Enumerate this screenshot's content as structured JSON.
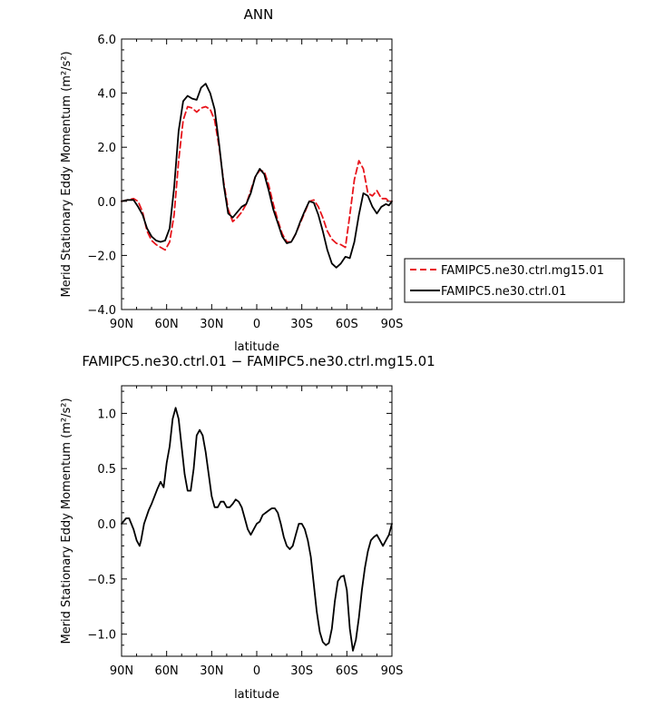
{
  "chart_data": [
    {
      "type": "line",
      "title": "ANN",
      "xlabel": "latitude",
      "ylabel": "Merid Stationary Eddy Momentum (m²/s²)",
      "xlim": [
        90,
        -90
      ],
      "ylim": [
        -4.0,
        6.0
      ],
      "x_ticks": [
        90,
        60,
        30,
        0,
        -30,
        -60,
        -90
      ],
      "x_tick_labels": [
        "90N",
        "60N",
        "30N",
        "0",
        "30S",
        "60S",
        "90S"
      ],
      "y_ticks": [
        -4,
        -2,
        0,
        2,
        4,
        6
      ],
      "y_tick_labels": [
        "−4.0",
        "−2.0",
        "0.0",
        "2.0",
        "4.0",
        "6.0"
      ],
      "legend_position": "outside-right",
      "series": [
        {
          "name": "FAMIPC5.ne30.ctrl.mg15.01",
          "color": "#e8141b",
          "dash": "dashed",
          "x": [
            90,
            86,
            82,
            79,
            76,
            73,
            70,
            67,
            64,
            61,
            58,
            55,
            52,
            49,
            46,
            43,
            40,
            37,
            34,
            31,
            28,
            25,
            22,
            19,
            16,
            13,
            10,
            7,
            4,
            1,
            -2,
            -5,
            -8,
            -11,
            -14,
            -17,
            -20,
            -23,
            -26,
            -29,
            -32,
            -35,
            -38,
            -41,
            -44,
            -47,
            -50,
            -53,
            -56,
            -59,
            -62,
            -65,
            -68,
            -71,
            -74,
            -77,
            -80,
            -83,
            -86,
            -88,
            -90
          ],
          "y": [
            0.0,
            0.05,
            0.1,
            0.0,
            -0.4,
            -1.1,
            -1.45,
            -1.6,
            -1.7,
            -1.8,
            -1.5,
            -0.5,
            1.5,
            3.0,
            3.5,
            3.45,
            3.3,
            3.45,
            3.5,
            3.4,
            3.0,
            2.0,
            0.7,
            -0.3,
            -0.75,
            -0.6,
            -0.4,
            -0.1,
            0.4,
            0.9,
            1.15,
            1.1,
            0.6,
            -0.1,
            -0.7,
            -1.2,
            -1.5,
            -1.5,
            -1.2,
            -0.8,
            -0.4,
            0.0,
            0.05,
            -0.2,
            -0.6,
            -1.1,
            -1.4,
            -1.55,
            -1.6,
            -1.7,
            -0.5,
            0.8,
            1.5,
            1.2,
            0.3,
            0.2,
            0.4,
            0.1,
            0.1,
            0.0,
            0.0
          ]
        },
        {
          "name": "FAMIPC5.ne30.ctrl.01",
          "color": "#000000",
          "dash": "solid",
          "x": [
            90,
            86,
            82,
            79,
            76,
            73,
            70,
            67,
            64,
            61,
            58,
            55,
            52,
            49,
            46,
            43,
            40,
            37,
            34,
            31,
            28,
            25,
            22,
            19,
            16,
            13,
            10,
            7,
            4,
            1,
            -2,
            -5,
            -8,
            -11,
            -14,
            -17,
            -20,
            -23,
            -26,
            -29,
            -32,
            -35,
            -38,
            -41,
            -44,
            -47,
            -50,
            -53,
            -56,
            -59,
            -62,
            -65,
            -68,
            -71,
            -74,
            -77,
            -80,
            -83,
            -86,
            -88,
            -90
          ],
          "y": [
            0.0,
            0.05,
            0.05,
            -0.2,
            -0.5,
            -1.0,
            -1.3,
            -1.45,
            -1.5,
            -1.45,
            -1.0,
            0.5,
            2.6,
            3.7,
            3.9,
            3.8,
            3.75,
            4.2,
            4.35,
            4.0,
            3.4,
            2.1,
            0.6,
            -0.45,
            -0.6,
            -0.4,
            -0.2,
            -0.1,
            0.3,
            0.9,
            1.2,
            1.0,
            0.4,
            -0.3,
            -0.8,
            -1.3,
            -1.55,
            -1.5,
            -1.2,
            -0.75,
            -0.35,
            0.0,
            -0.05,
            -0.5,
            -1.1,
            -1.8,
            -2.3,
            -2.45,
            -2.3,
            -2.05,
            -2.1,
            -1.5,
            -0.5,
            0.3,
            0.2,
            -0.2,
            -0.45,
            -0.2,
            -0.1,
            -0.15,
            0.0
          ]
        }
      ]
    },
    {
      "type": "line",
      "title": "FAMIPC5.ne30.ctrl.01 − FAMIPC5.ne30.ctrl.mg15.01",
      "xlabel": "latitude",
      "ylabel": "Merid Stationary Eddy Momentum (m²/s²)",
      "xlim": [
        90,
        -90
      ],
      "ylim": [
        -1.2,
        1.25
      ],
      "x_ticks": [
        90,
        60,
        30,
        0,
        -30,
        -60,
        -90
      ],
      "x_tick_labels": [
        "90N",
        "60N",
        "30N",
        "0",
        "30S",
        "60S",
        "90S"
      ],
      "y_ticks": [
        -1.0,
        -0.5,
        0.0,
        0.5,
        1.0
      ],
      "y_tick_labels": [
        "−1.0",
        "−0.5",
        "0.0",
        "0.5",
        "1.0"
      ],
      "series": [
        {
          "color": "#000000",
          "dash": "solid",
          "x": [
            90,
            87,
            85,
            82,
            80,
            78,
            77,
            75,
            72,
            70,
            68,
            66,
            64,
            62,
            60,
            58,
            56,
            54,
            52,
            50,
            48,
            46,
            44,
            42,
            40,
            38,
            36,
            34,
            32,
            30,
            28,
            26,
            24,
            22,
            20,
            18,
            16,
            14,
            12,
            10,
            8,
            6,
            4,
            2,
            0,
            -2,
            -4,
            -6,
            -8,
            -10,
            -12,
            -14,
            -16,
            -18,
            -20,
            -22,
            -24,
            -26,
            -28,
            -30,
            -32,
            -34,
            -36,
            -38,
            -40,
            -42,
            -44,
            -46,
            -48,
            -50,
            -52,
            -54,
            -56,
            -58,
            -60,
            -62,
            -64,
            -66,
            -68,
            -70,
            -72,
            -74,
            -76,
            -78,
            -80,
            -82,
            -84,
            -86,
            -88,
            -90
          ],
          "y": [
            0.0,
            0.05,
            0.05,
            -0.05,
            -0.15,
            -0.2,
            -0.15,
            0.0,
            0.12,
            0.18,
            0.25,
            0.32,
            0.38,
            0.33,
            0.55,
            0.7,
            0.95,
            1.05,
            0.95,
            0.7,
            0.45,
            0.3,
            0.3,
            0.5,
            0.8,
            0.85,
            0.8,
            0.65,
            0.45,
            0.25,
            0.15,
            0.15,
            0.2,
            0.2,
            0.15,
            0.15,
            0.18,
            0.22,
            0.2,
            0.15,
            0.05,
            -0.05,
            -0.1,
            -0.05,
            0.0,
            0.02,
            0.08,
            0.1,
            0.12,
            0.14,
            0.14,
            0.1,
            0.0,
            -0.12,
            -0.2,
            -0.23,
            -0.2,
            -0.1,
            0.0,
            0.0,
            -0.05,
            -0.15,
            -0.3,
            -0.55,
            -0.8,
            -0.98,
            -1.07,
            -1.1,
            -1.08,
            -0.95,
            -0.7,
            -0.52,
            -0.48,
            -0.47,
            -0.6,
            -0.95,
            -1.15,
            -1.05,
            -0.85,
            -0.6,
            -0.4,
            -0.25,
            -0.15,
            -0.12,
            -0.1,
            -0.15,
            -0.2,
            -0.15,
            -0.1,
            0.0
          ]
        }
      ]
    }
  ]
}
